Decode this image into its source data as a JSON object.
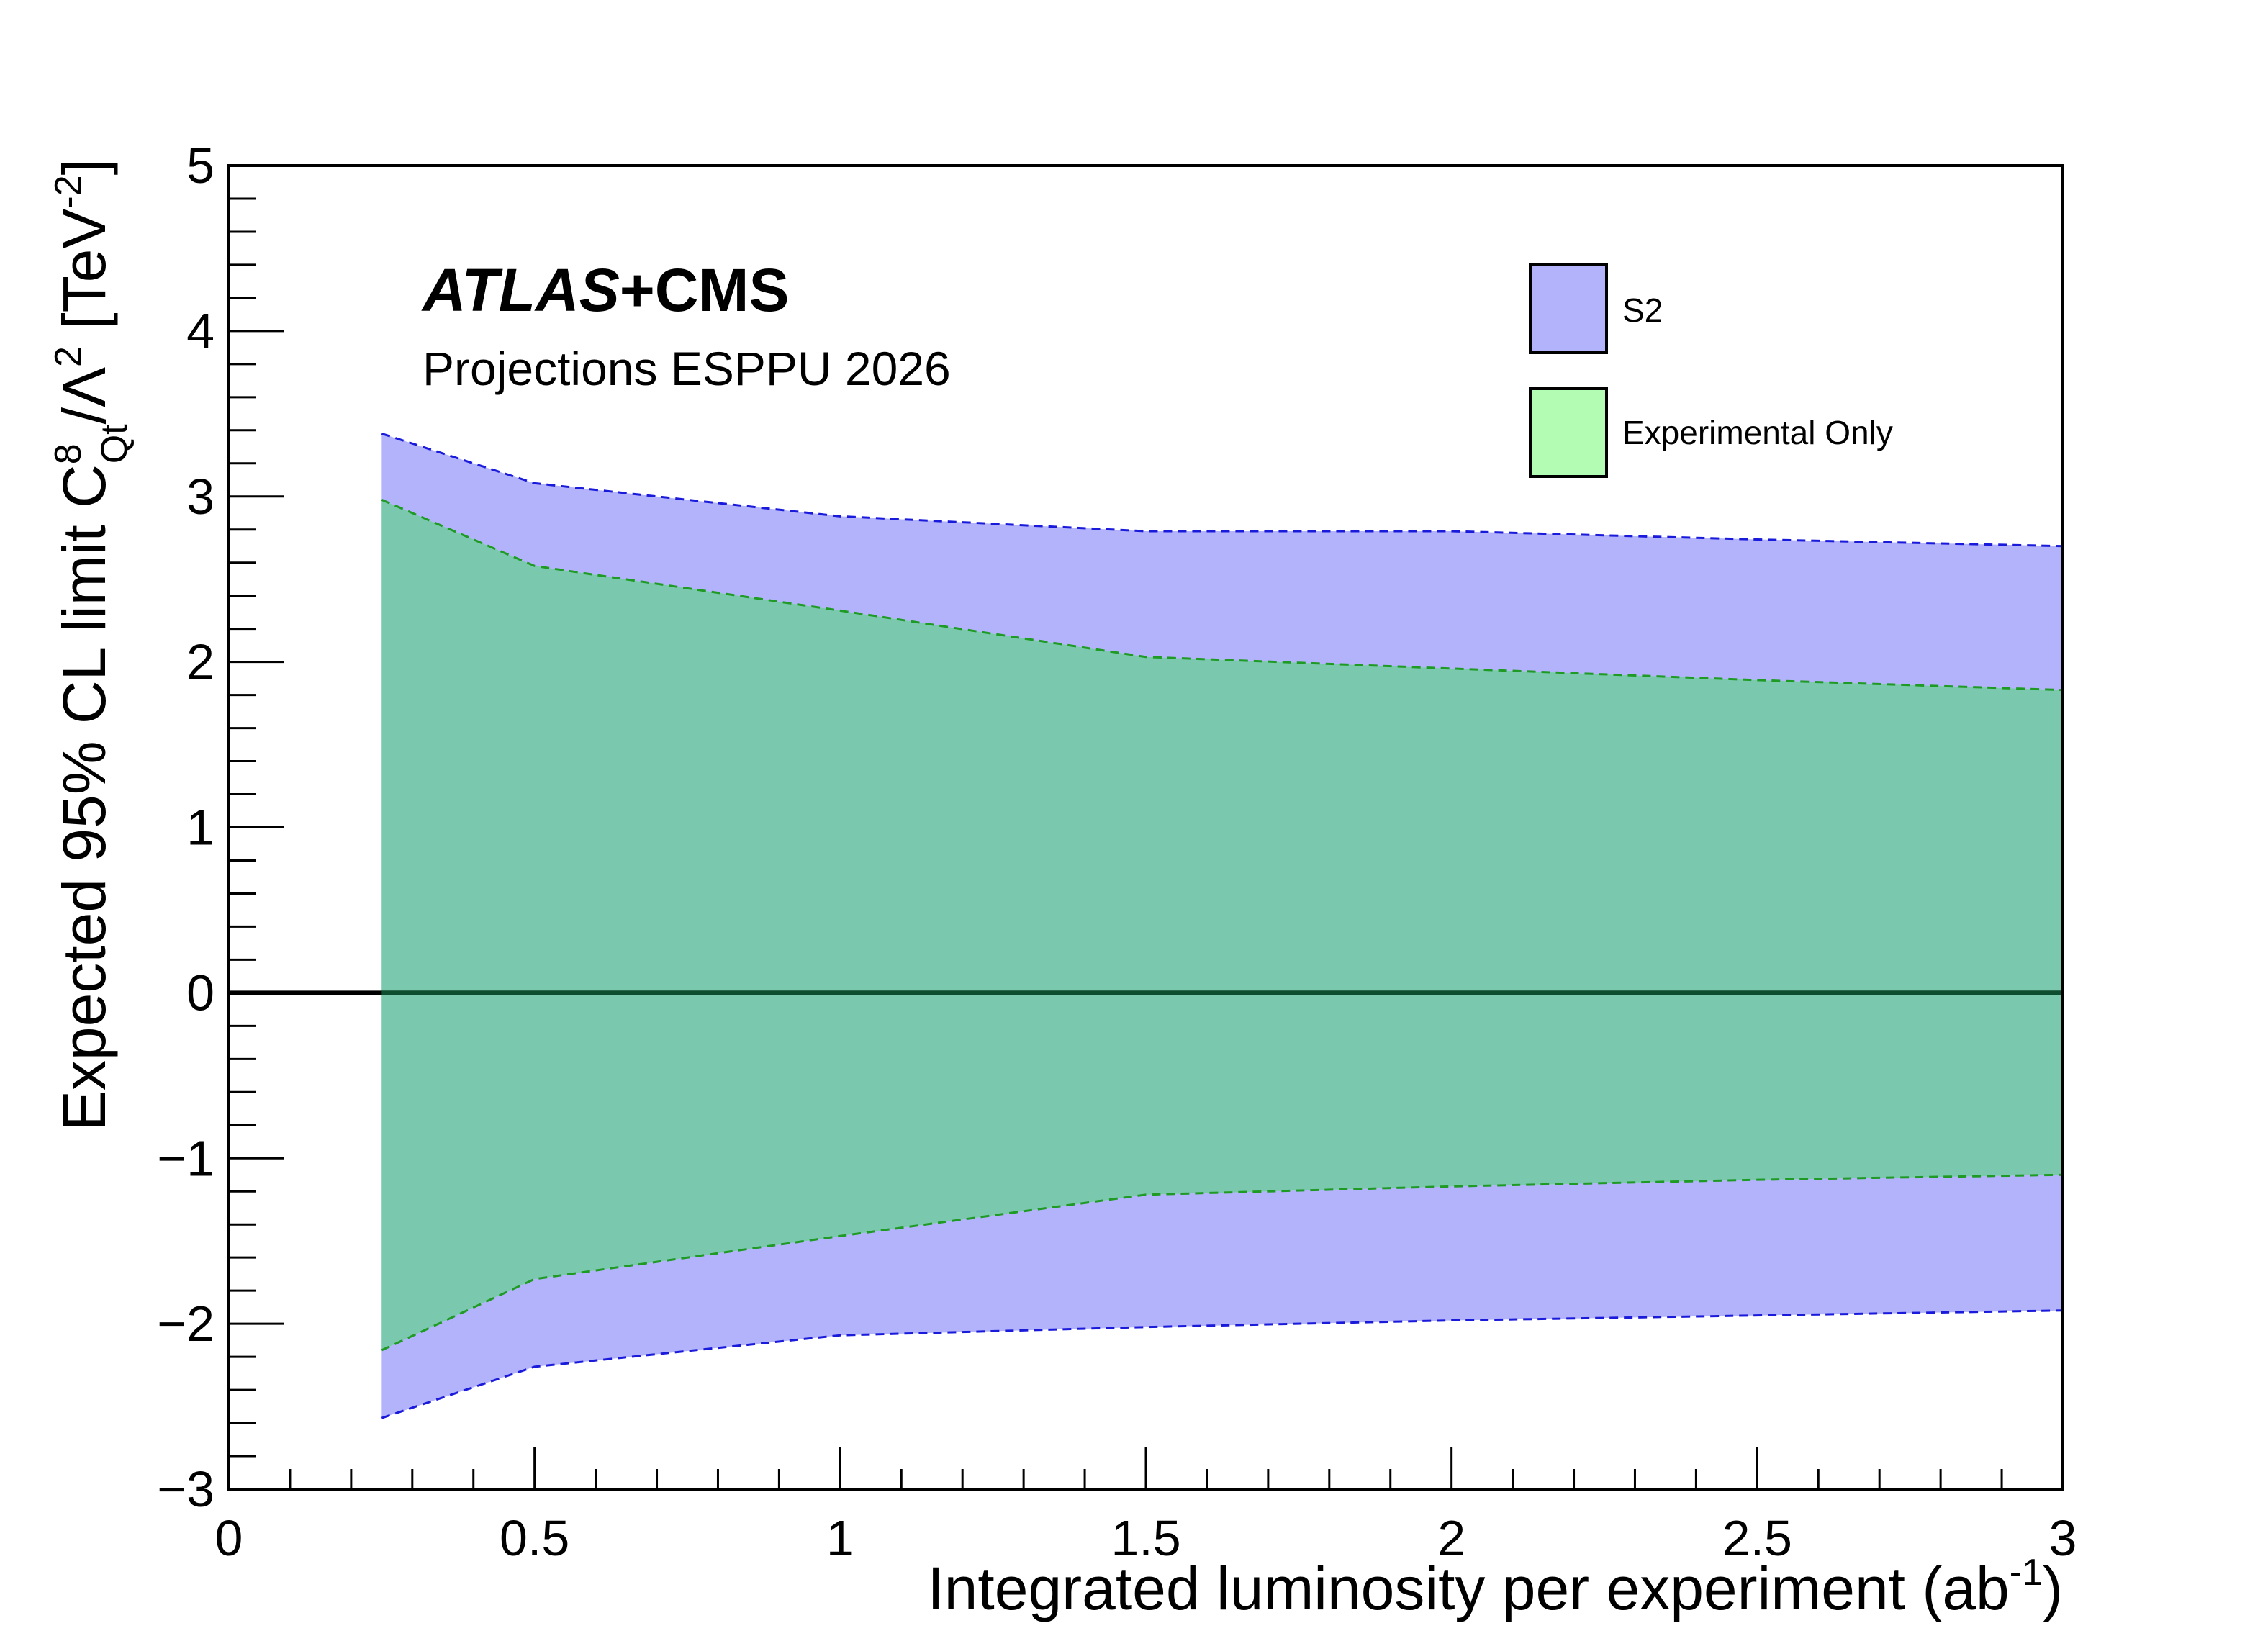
{
  "chart_data": {
    "type": "area",
    "title": {
      "experiment_atlas": "ATLAS",
      "experiment_rest": "+CMS",
      "subtitle": "Projections ESPPU 2026"
    },
    "xlabel": {
      "text": "Integrated luminosity per experiment (ab",
      "superscript": "-1",
      "closing": ")"
    },
    "ylabel": {
      "prefix": "Expected 95% CL limit C",
      "coef_super": "8",
      "coef_sub": "Qt",
      "divider": "/Λ",
      "lambda_super": "2",
      "units_open": " [TeV",
      "units_super": "-2",
      "units_close": "]"
    },
    "xlim": [
      0,
      3
    ],
    "ylim": [
      -3,
      5
    ],
    "x_ticks": [
      {
        "value": 0,
        "label": "0"
      },
      {
        "value": 0.5,
        "label": "0.5"
      },
      {
        "value": 1,
        "label": "1"
      },
      {
        "value": 1.5,
        "label": "1.5"
      },
      {
        "value": 2,
        "label": "2"
      },
      {
        "value": 2.5,
        "label": "2.5"
      },
      {
        "value": 3,
        "label": "3"
      }
    ],
    "y_ticks": [
      {
        "value": -3,
        "label": "−3"
      },
      {
        "value": -2,
        "label": "−2"
      },
      {
        "value": -1,
        "label": "−1"
      },
      {
        "value": 0,
        "label": "0"
      },
      {
        "value": 1,
        "label": "1"
      },
      {
        "value": 2,
        "label": "2"
      },
      {
        "value": 3,
        "label": "3"
      },
      {
        "value": 4,
        "label": "4"
      },
      {
        "value": 5,
        "label": "5"
      }
    ],
    "x": [
      0.25,
      0.5,
      1.0,
      1.5,
      2.0,
      2.5,
      3.0
    ],
    "series": [
      {
        "name": "S2",
        "upper": [
          3.38,
          3.08,
          2.88,
          2.79,
          2.79,
          2.74,
          2.7
        ],
        "lower": [
          -2.57,
          -2.26,
          -2.07,
          -2.02,
          -1.98,
          -1.95,
          -1.92
        ],
        "fill": "#b3b3fc",
        "line": "#1a1adb"
      },
      {
        "name": "Experimental Only",
        "upper": [
          2.98,
          2.58,
          2.31,
          2.03,
          1.96,
          1.89,
          1.83
        ],
        "lower": [
          -2.16,
          -1.73,
          -1.47,
          -1.22,
          -1.17,
          -1.13,
          -1.1
        ],
        "fill": "#b3fcb3",
        "line": "#1f9a24"
      }
    ],
    "overlap_fill": "#7ac8ae",
    "reference_line": {
      "y": 0,
      "color": "#000000",
      "color_in_band": "#0d4d30"
    },
    "legend": {
      "placement": "top-right",
      "entries": [
        {
          "label": "S2",
          "color": "#b3b3fc"
        },
        {
          "label": "Experimental Only",
          "color": "#b3fcb3"
        }
      ]
    },
    "grid": false
  }
}
